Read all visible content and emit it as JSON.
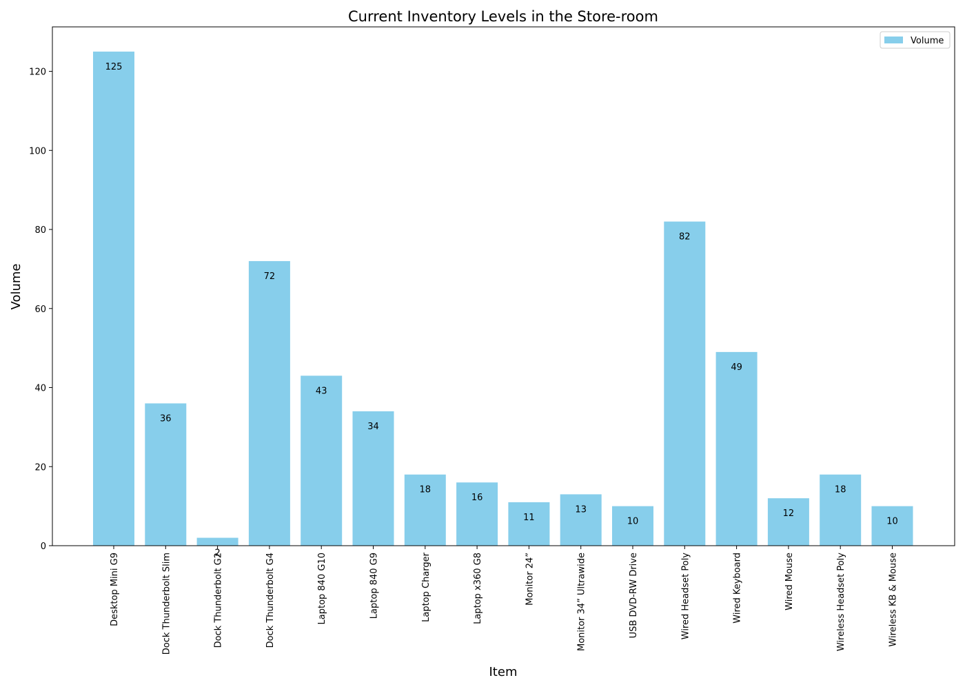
{
  "chart_data": {
    "type": "bar",
    "title": "Current Inventory Levels in the Store-room",
    "xlabel": "Item",
    "ylabel": "Volume",
    "categories": [
      "Desktop Mini G9",
      "Dock Thunderbolt Slim",
      "Dock Thunderbolt G2",
      "Dock Thunderbolt G4",
      "Laptop 840 G10",
      "Laptop 840 G9",
      "Laptop Charger",
      "Laptop x360 G8",
      "Monitor 24”",
      "Monitor 34” Ultrawide",
      "USB DVD-RW Drive",
      "Wired Headset Poly",
      "Wired Keyboard",
      "Wired Mouse",
      "Wireless Headset Poly",
      "Wireless KB & Mouse"
    ],
    "series": [
      {
        "name": "Volume",
        "values": [
          125,
          36,
          2,
          72,
          43,
          34,
          18,
          16,
          11,
          13,
          10,
          82,
          49,
          12,
          18,
          10
        ],
        "color": "#87ceeb"
      }
    ],
    "data_labels": [
      "125",
      "36",
      "2",
      "72",
      "43",
      "34",
      "18",
      "16",
      "11",
      "13",
      "10",
      "82",
      "49",
      "12",
      "18",
      "10"
    ],
    "ylim": [
      0,
      131.25
    ],
    "yticks": [
      0,
      20,
      40,
      60,
      80,
      100,
      120
    ],
    "ytick_labels": [
      "0",
      "20",
      "40",
      "60",
      "80",
      "100",
      "120"
    ],
    "grid": false,
    "legend": {
      "position": "top-right",
      "entries": [
        "Volume"
      ]
    }
  }
}
